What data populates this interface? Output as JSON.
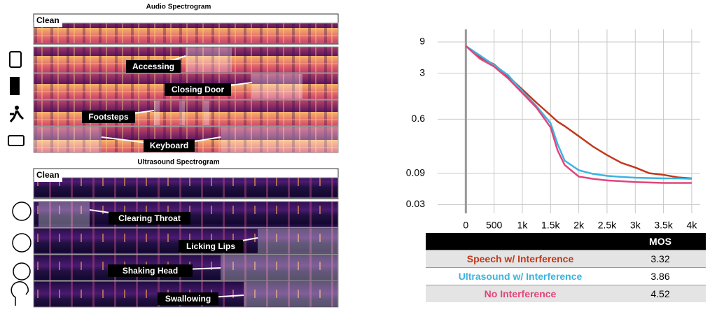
{
  "audio": {
    "title": "Audio Spectrogram",
    "clean": "Clean",
    "events": [
      "Accessing",
      "Closing Door",
      "Footsteps",
      "Keyboard"
    ]
  },
  "ultrasound": {
    "title": "Ultrasound Spectrogram",
    "clean": "Clean",
    "events": [
      "Clearing Throat",
      "Licking Lips",
      "Shaking Head",
      "Swallowing"
    ]
  },
  "chart_data": {
    "type": "line",
    "log_y": true,
    "grid": true,
    "x": [
      0,
      250,
      500,
      750,
      1000,
      1250,
      1500,
      1625,
      1750,
      2000,
      2250,
      2500,
      2750,
      3000,
      3250,
      3500,
      3750,
      4000
    ],
    "xlim": [
      -500,
      4150
    ],
    "xticks": [
      0,
      500,
      {
        "value": 1000,
        "label": "1k"
      },
      {
        "value": 1500,
        "label": "1.5k"
      },
      {
        "value": 2000,
        "label": "2k"
      },
      {
        "value": 2500,
        "label": "2.5k"
      },
      {
        "value": 3000,
        "label": "3k"
      },
      {
        "value": 3500,
        "label": "3.5k"
      },
      {
        "value": 4000,
        "label": "4k"
      }
    ],
    "ylim": [
      0.022,
      14
    ],
    "yticks": [
      0.03,
      0.09,
      0.6,
      3,
      9
    ],
    "series": [
      {
        "name": "Speech w/ Interference",
        "color": "#c0391b",
        "values": [
          7.8,
          5.3,
          4.1,
          2.7,
          1.7,
          1.07,
          0.69,
          0.55,
          0.47,
          0.33,
          0.23,
          0.17,
          0.13,
          0.11,
          0.09,
          0.085,
          0.078,
          0.075
        ]
      },
      {
        "name": "Ultrasound w/ Interference",
        "color": "#3bb5e0",
        "values": [
          7.8,
          5.6,
          4.0,
          2.8,
          1.6,
          0.95,
          0.52,
          0.25,
          0.14,
          0.1,
          0.088,
          0.082,
          0.079,
          0.077,
          0.076,
          0.075,
          0.075,
          0.074
        ]
      },
      {
        "name": "No Interference",
        "color": "#e0457b",
        "values": [
          7.8,
          5.0,
          3.8,
          2.5,
          1.5,
          0.9,
          0.45,
          0.2,
          0.12,
          0.08,
          0.074,
          0.07,
          0.068,
          0.066,
          0.065,
          0.064,
          0.064,
          0.064
        ]
      }
    ]
  },
  "table": {
    "header": "MOS",
    "mos": [
      3.32,
      3.86,
      4.52
    ]
  }
}
